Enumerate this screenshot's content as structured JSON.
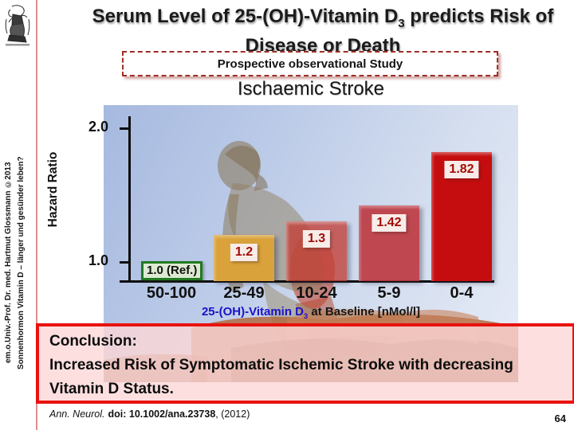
{
  "sidebar": {
    "credit_line1": "em.o.Univ.-Prof. Dr. med. Hartmut Glossmann ©2013",
    "credit_line2": "Sonnenhormon Vitamin D – länger und gesünder leben?"
  },
  "header": {
    "title_part1": "Serum Level of 25-(OH)-Vitamin D",
    "title_subscript": "3",
    "title_part2": " predicts Risk of",
    "title_line2": "Disease or Death",
    "study_type_label": "Prospective observational Study",
    "chart_heading": "Ischaemic Stroke"
  },
  "chart_data": {
    "type": "bar",
    "title": "Ischaemic Stroke",
    "ylabel": "Hazard Ratio",
    "xlabel_prefix": "25-(OH)-Vitamin D",
    "xlabel_subscript": "3",
    "xlabel_suffix": " at Baseline [nMol/l]",
    "categories": [
      "50-100",
      "25-49",
      "10-24",
      "5-9",
      "0-4"
    ],
    "values": [
      1.0,
      1.2,
      1.3,
      1.42,
      1.82
    ],
    "bar_labels": [
      "1.0 (Ref.)",
      "1.2",
      "1.3",
      "1.42",
      "1.82"
    ],
    "ytick_labels": [
      "2.0",
      "1.0"
    ],
    "ylim": [
      0.85,
      2.1
    ],
    "grid": false,
    "legend": false,
    "bar_colors": [
      "transparent",
      "#d9a23a",
      "rgba(193,62,52,0.78)",
      "rgba(189,54,62,0.9)",
      "#c50d0f"
    ],
    "reference_box_color": "#217a21",
    "value_label_color": "#a00d04",
    "xlabel_accent_color": "#1a12c8"
  },
  "conclusion": {
    "heading": "Conclusion:",
    "line1": "Increased Risk of Symptomatic Ischemic Stroke with decreasing",
    "line2": "Vitamin D Status."
  },
  "footer": {
    "citation_journal": "Ann. Neurol.",
    "citation_doi": "doi: 10.1002/ana.23738",
    "citation_suffix": ", (2012)",
    "page_number": "64"
  }
}
